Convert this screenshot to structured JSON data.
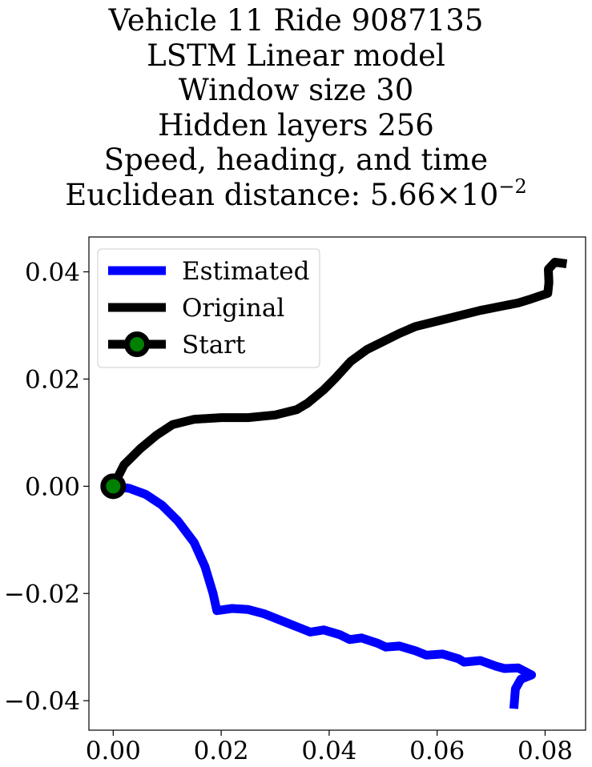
{
  "chart_data": {
    "type": "line",
    "title_lines": [
      "Vehicle 11 Ride 9087135",
      "LSTM Linear model",
      "Window size 30",
      "Hidden layers 256",
      "Speed, heading, and time"
    ],
    "title_distance_prefix": "Euclidean distance: ",
    "title_distance_mantissa": "5.66",
    "title_distance_times": "×",
    "title_distance_base": "10",
    "title_distance_exponent": "−2",
    "xlim": [
      -0.0045,
      0.0875
    ],
    "ylim": [
      -0.0455,
      0.0465
    ],
    "x_ticks": [
      0.0,
      0.02,
      0.04,
      0.06,
      0.08
    ],
    "x_tick_labels": [
      "0.00",
      "0.02",
      "0.04",
      "0.06",
      "0.08"
    ],
    "y_ticks": [
      -0.04,
      -0.02,
      0.0,
      0.02,
      0.04
    ],
    "y_tick_labels": [
      "−0.04",
      "−0.02",
      "0.00",
      "0.02",
      "0.04"
    ],
    "grid": false,
    "legend_placement": "upper-left",
    "series": [
      {
        "name": "Estimated",
        "color": "#0000ff",
        "points": [
          [
            0.0,
            0.0
          ],
          [
            0.003,
            -0.0004
          ],
          [
            0.006,
            -0.0015
          ],
          [
            0.009,
            -0.0035
          ],
          [
            0.012,
            -0.0065
          ],
          [
            0.015,
            -0.0105
          ],
          [
            0.017,
            -0.015
          ],
          [
            0.0185,
            -0.02
          ],
          [
            0.0192,
            -0.0232
          ],
          [
            0.022,
            -0.0228
          ],
          [
            0.025,
            -0.023
          ],
          [
            0.028,
            -0.0238
          ],
          [
            0.031,
            -0.025
          ],
          [
            0.034,
            -0.0262
          ],
          [
            0.0365,
            -0.0272
          ],
          [
            0.039,
            -0.0268
          ],
          [
            0.042,
            -0.0277
          ],
          [
            0.0438,
            -0.0286
          ],
          [
            0.046,
            -0.0283
          ],
          [
            0.049,
            -0.0293
          ],
          [
            0.0505,
            -0.03
          ],
          [
            0.053,
            -0.0298
          ],
          [
            0.056,
            -0.0307
          ],
          [
            0.058,
            -0.0315
          ],
          [
            0.061,
            -0.0313
          ],
          [
            0.064,
            -0.0322
          ],
          [
            0.065,
            -0.0328
          ],
          [
            0.068,
            -0.0325
          ],
          [
            0.071,
            -0.0336
          ],
          [
            0.0725,
            -0.034
          ],
          [
            0.075,
            -0.0339
          ],
          [
            0.0775,
            -0.0352
          ],
          [
            0.0755,
            -0.036
          ],
          [
            0.0745,
            -0.0378
          ],
          [
            0.0742,
            -0.0415
          ]
        ]
      },
      {
        "name": "Original",
        "color": "#000000",
        "points": [
          [
            0.0,
            0.0
          ],
          [
            0.002,
            0.004
          ],
          [
            0.005,
            0.007
          ],
          [
            0.008,
            0.0095
          ],
          [
            0.011,
            0.0115
          ],
          [
            0.015,
            0.0125
          ],
          [
            0.02,
            0.0128
          ],
          [
            0.025,
            0.0128
          ],
          [
            0.03,
            0.0133
          ],
          [
            0.034,
            0.0143
          ],
          [
            0.036,
            0.0155
          ],
          [
            0.039,
            0.018
          ],
          [
            0.041,
            0.02
          ],
          [
            0.044,
            0.0233
          ],
          [
            0.047,
            0.0255
          ],
          [
            0.05,
            0.027
          ],
          [
            0.053,
            0.0285
          ],
          [
            0.056,
            0.0298
          ],
          [
            0.06,
            0.0308
          ],
          [
            0.064,
            0.0318
          ],
          [
            0.068,
            0.0328
          ],
          [
            0.072,
            0.0336
          ],
          [
            0.075,
            0.0342
          ],
          [
            0.077,
            0.0348
          ],
          [
            0.0805,
            0.036
          ],
          [
            0.0807,
            0.038
          ],
          [
            0.0806,
            0.0405
          ],
          [
            0.0818,
            0.0418
          ],
          [
            0.084,
            0.0415
          ]
        ]
      }
    ],
    "start": {
      "name": "Start",
      "point": [
        0.0,
        0.0
      ],
      "marker_color": "#008000",
      "edge_color": "#000000"
    }
  }
}
